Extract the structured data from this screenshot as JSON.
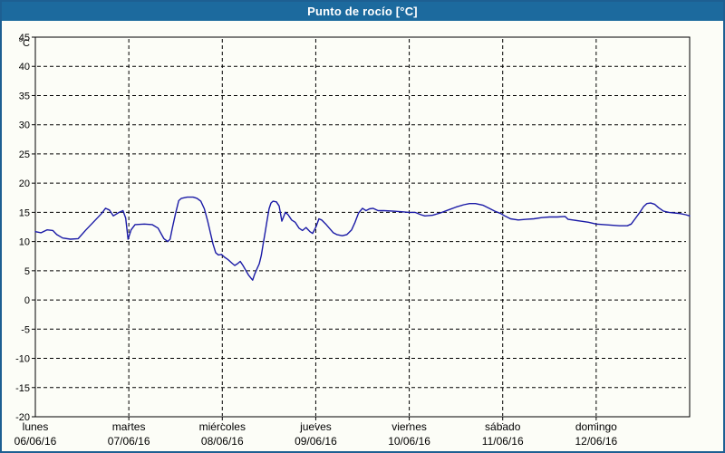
{
  "window": {
    "title": "Punto de rocío [°C]"
  },
  "colors": {
    "titlebar_bg": "#1C6A9E",
    "titlebar_text": "#FFFFFF",
    "frame_border": "#1D5F92",
    "background": "#FCFDF7",
    "plot_frame": "#000000",
    "grid": "#000000",
    "line": "#1A1AA6"
  },
  "chart_data": {
    "type": "line",
    "title": "Punto de rocío [°C]",
    "ylabel": "°C",
    "xlabel": "",
    "grid": "dashed",
    "legend": "none",
    "y_axis": {
      "min": -20,
      "max": 45,
      "tick_step": 5,
      "ticks": [
        45,
        40,
        35,
        30,
        25,
        20,
        15,
        10,
        5,
        0,
        -5,
        -10,
        -15,
        -20
      ],
      "unit": "°C"
    },
    "x_axis": {
      "span_hours": 168,
      "categories": [
        {
          "day": "lunes",
          "date": "06/06/16"
        },
        {
          "day": "martes",
          "date": "07/06/16"
        },
        {
          "day": "miércoles",
          "date": "08/06/16"
        },
        {
          "day": "jueves",
          "date": "09/06/16"
        },
        {
          "day": "viernes",
          "date": "10/06/16"
        },
        {
          "day": "sábado",
          "date": "11/06/16"
        },
        {
          "day": "domingo",
          "date": "12/06/16"
        }
      ]
    },
    "series": [
      {
        "name": "Punto de rocío",
        "color": "#1A1AA6",
        "points": [
          [
            0,
            11.7
          ],
          [
            1.5,
            11.5
          ],
          [
            3,
            12.0
          ],
          [
            4.5,
            11.9
          ],
          [
            5.5,
            11.2
          ],
          [
            7,
            10.6
          ],
          [
            9,
            10.4
          ],
          [
            11,
            10.5
          ],
          [
            13,
            12.0
          ],
          [
            15,
            13.4
          ],
          [
            17,
            14.8
          ],
          [
            18,
            15.7
          ],
          [
            19,
            15.4
          ],
          [
            20,
            14.4
          ],
          [
            21.5,
            15.0
          ],
          [
            22.5,
            15.3
          ],
          [
            23.2,
            14.0
          ],
          [
            23.8,
            10.4
          ],
          [
            24.6,
            12.0
          ],
          [
            25.6,
            12.9
          ],
          [
            28,
            13.0
          ],
          [
            30,
            12.9
          ],
          [
            31.5,
            12.3
          ],
          [
            33,
            10.5
          ],
          [
            34,
            10.0
          ],
          [
            34.6,
            10.4
          ],
          [
            35.2,
            12.4
          ],
          [
            36,
            14.8
          ],
          [
            36.8,
            17.0
          ],
          [
            37.5,
            17.4
          ],
          [
            39,
            17.6
          ],
          [
            40.5,
            17.6
          ],
          [
            41.5,
            17.4
          ],
          [
            42.5,
            16.9
          ],
          [
            43.4,
            15.6
          ],
          [
            44.2,
            13.6
          ],
          [
            44.9,
            11.6
          ],
          [
            45.6,
            9.6
          ],
          [
            46.3,
            8.1
          ],
          [
            47,
            7.7
          ],
          [
            47.8,
            7.8
          ],
          [
            48.6,
            7.3
          ],
          [
            49.5,
            6.9
          ],
          [
            50.5,
            6.3
          ],
          [
            51.2,
            5.9
          ],
          [
            51.9,
            6.2
          ],
          [
            52.6,
            6.6
          ],
          [
            53.3,
            5.9
          ],
          [
            54,
            5.1
          ],
          [
            54.7,
            4.3
          ],
          [
            55.4,
            3.7
          ],
          [
            55.8,
            3.4
          ],
          [
            56.3,
            4.4
          ],
          [
            56.9,
            5.3
          ],
          [
            57.5,
            6.2
          ],
          [
            58,
            7.6
          ],
          [
            58.5,
            9.6
          ],
          [
            59,
            11.6
          ],
          [
            59.5,
            13.6
          ],
          [
            60,
            15.6
          ],
          [
            60.5,
            16.6
          ],
          [
            61,
            16.9
          ],
          [
            61.9,
            16.8
          ],
          [
            62.6,
            16.1
          ],
          [
            63.3,
            13.5
          ],
          [
            64.2,
            15.0
          ],
          [
            64.9,
            14.6
          ],
          [
            65.8,
            13.7
          ],
          [
            66.7,
            13.3
          ],
          [
            67.7,
            12.3
          ],
          [
            68.6,
            11.9
          ],
          [
            69.5,
            12.4
          ],
          [
            70.5,
            11.7
          ],
          [
            71.2,
            11.4
          ],
          [
            72.1,
            12.6
          ],
          [
            72.8,
            13.9
          ],
          [
            73.5,
            13.7
          ],
          [
            74.7,
            12.9
          ],
          [
            75.6,
            12.2
          ],
          [
            76.5,
            11.5
          ],
          [
            77.4,
            11.2
          ],
          [
            78.8,
            11.0
          ],
          [
            80,
            11.2
          ],
          [
            81.2,
            12.0
          ],
          [
            82.1,
            13.3
          ],
          [
            83,
            14.9
          ],
          [
            84,
            15.7
          ],
          [
            84.9,
            15.3
          ],
          [
            85.8,
            15.6
          ],
          [
            86.7,
            15.7
          ],
          [
            88,
            15.3
          ],
          [
            89.5,
            15.3
          ],
          [
            92,
            15.2
          ],
          [
            94,
            15.1
          ],
          [
            96,
            15.0
          ],
          [
            97.5,
            15.0
          ],
          [
            99,
            14.6
          ],
          [
            100,
            14.4
          ],
          [
            102,
            14.5
          ],
          [
            104,
            14.9
          ],
          [
            106,
            15.4
          ],
          [
            108,
            15.9
          ],
          [
            110,
            16.3
          ],
          [
            111.5,
            16.5
          ],
          [
            113,
            16.5
          ],
          [
            115,
            16.2
          ],
          [
            116.5,
            15.7
          ],
          [
            118,
            15.2
          ],
          [
            119.5,
            14.8
          ],
          [
            120.5,
            14.4
          ],
          [
            122,
            13.9
          ],
          [
            124,
            13.7
          ],
          [
            126,
            13.8
          ],
          [
            128,
            13.9
          ],
          [
            130,
            14.1
          ],
          [
            132,
            14.2
          ],
          [
            134,
            14.2
          ],
          [
            136,
            14.3
          ],
          [
            136.8,
            13.8
          ],
          [
            138,
            13.7
          ],
          [
            140,
            13.5
          ],
          [
            142,
            13.3
          ],
          [
            144,
            13.0
          ],
          [
            146,
            12.9
          ],
          [
            148,
            12.8
          ],
          [
            150,
            12.7
          ],
          [
            152,
            12.7
          ],
          [
            153,
            13.0
          ],
          [
            154,
            13.9
          ],
          [
            155.2,
            15.0
          ],
          [
            156.2,
            16.0
          ],
          [
            157,
            16.5
          ],
          [
            158,
            16.6
          ],
          [
            159,
            16.4
          ],
          [
            160,
            15.8
          ],
          [
            161.3,
            15.2
          ],
          [
            162.7,
            15.0
          ],
          [
            164,
            14.9
          ],
          [
            165.5,
            14.8
          ],
          [
            167,
            14.6
          ],
          [
            168,
            14.4
          ]
        ]
      }
    ]
  }
}
